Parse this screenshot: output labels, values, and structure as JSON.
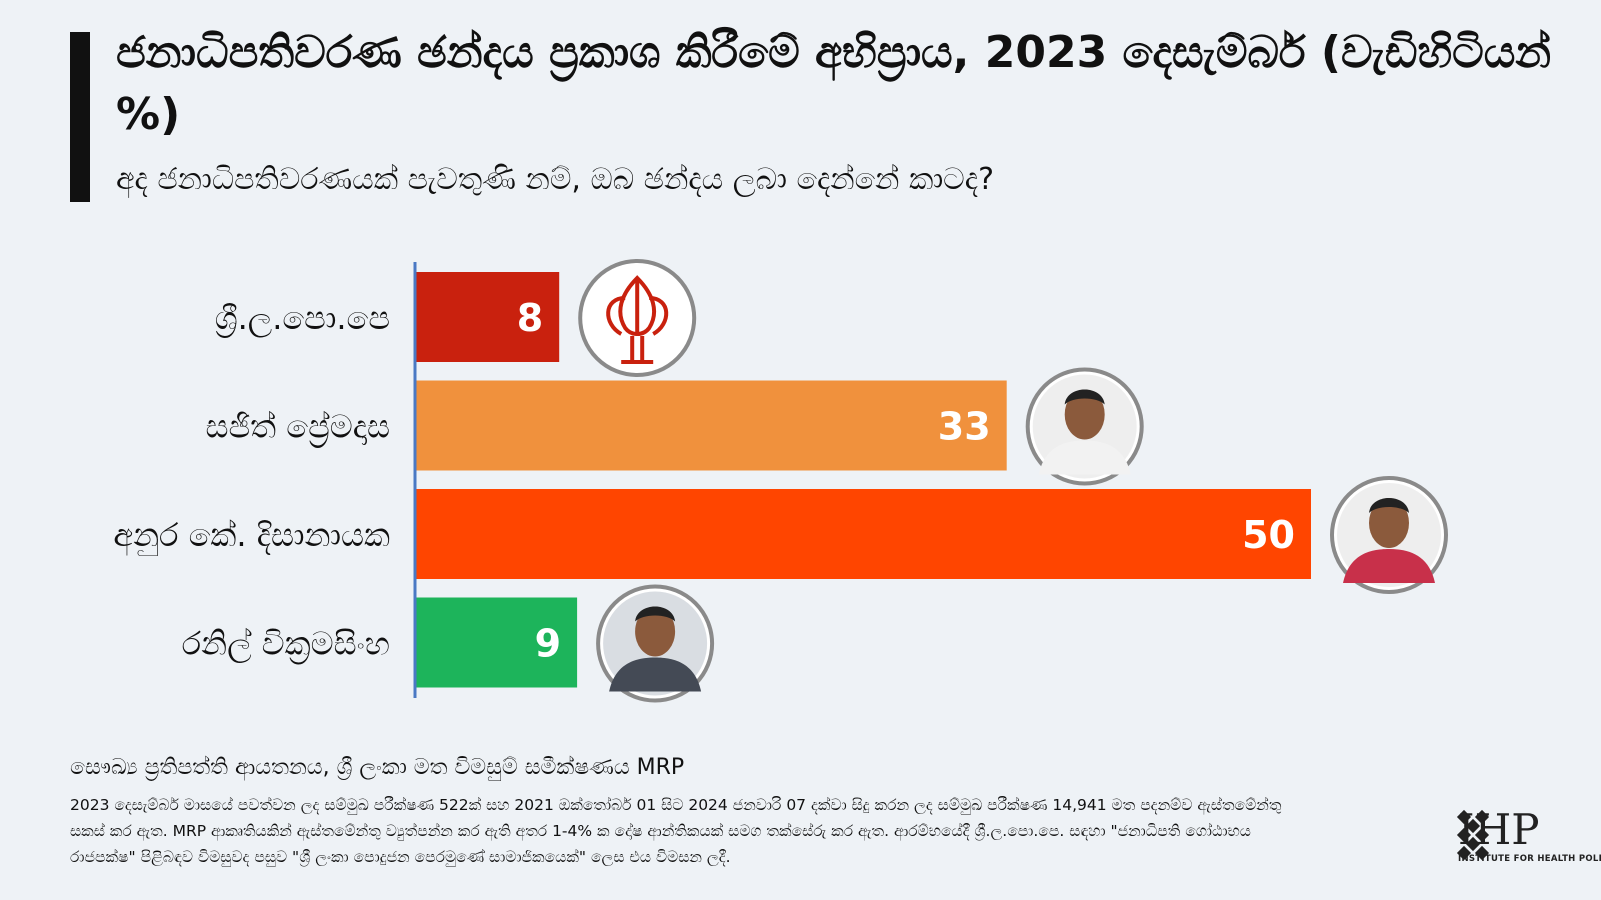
{
  "header": {
    "title": "ජනාධිපතිවරණ ඡන්දය ප්‍රකාශ කිරීමේ අභිප්‍රාය, 2023 දෙසැම්බර් (වැඩිහිටියන් %)",
    "subtitle": "අද ජනාධිපතිවරණයක් පැවතුණි නම්, ඔබ ඡන්දය ලබා දෙන්නේ කාටද?"
  },
  "chart_data": {
    "type": "bar",
    "orientation": "horizontal",
    "categories": [
      "ශ්‍රී.ල.පො.පෙ",
      "සජිත් ප්‍රේමදාස",
      "අනුර කේ. දිසානායක",
      "රනිල් වික්‍රමසිංහ"
    ],
    "values": [
      8,
      33,
      50,
      9
    ],
    "colors": [
      "#c9210e",
      "#f0913d",
      "#ff4500",
      "#1db45b"
    ],
    "icons": [
      "lotus-bud-icon",
      "candidate-photo-icon",
      "candidate-photo-icon",
      "candidate-photo-icon"
    ],
    "axis_color": "#4a79c4",
    "xlim": [
      0,
      50
    ],
    "grid": false,
    "legend": "none"
  },
  "footer": {
    "source": "සෞඛ්‍ය ප්‍රතිපත්ති ආයතනය, ශ්‍රී ලංකා මත විමසුම් සමීක්ෂණය MRP",
    "note": "2023 දෙසැම්බර් මාසයේ පවත්වන ලද සම්මුඛ පරීක්ෂණ 522ක් සහ 2021 ඔක්තෝබර් 01 සිට 2024 ජනවාරි 07 දක්වා සිදු කරන ලද සම්මුඛ පරීක්ෂණ 14,941 මත පදනම්ව ඇස්තමේන්තු සකස් කර ඇත. MRP ආකෘතියකින් ඇස්තමේන්තු ව්‍යුත්පන්න කර ඇති අතර 1-4% ක දෝෂ ආන්තිකයක් සමග තක්සේරු කර ඇත. ආරම්භයේදී ශ්‍රී.ල.පො.පෙ. සඳහා \"ජනාධිපති ගෝඨාභය රාජපක්ෂ\" පිළිබඳව විමසුවද පසුව \"ශ්‍රී ලංකා පොදුජන පෙරමුණේ සාමාජිකයෙක්\" ලෙස එය විමසන ලදී."
  },
  "logo": {
    "text": "IHP",
    "subtext": "INSTITUTE FOR HEALTH POLICY"
  }
}
